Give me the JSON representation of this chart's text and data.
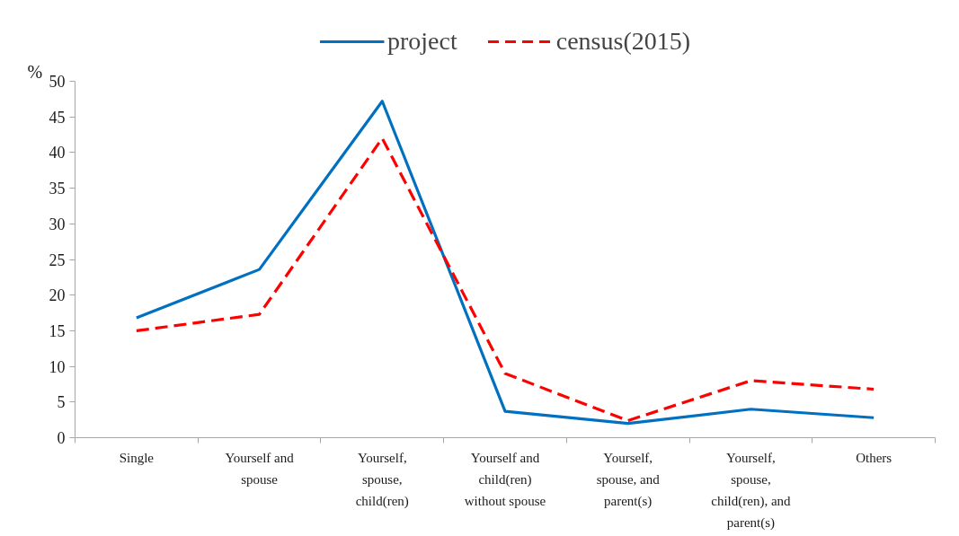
{
  "chart_data": {
    "type": "line",
    "categories": [
      "Single",
      "Yourself and spouse",
      "Yourself, spouse, child(ren)",
      "Yourself and child(ren) without spouse",
      "Yourself, spouse, and parent(s)",
      "Yourself, spouse, child(ren), and parent(s)",
      "Others"
    ],
    "series": [
      {
        "name": "project",
        "color": "#0070c0",
        "line_style": "solid",
        "values": [
          16.8,
          23.6,
          47.2,
          3.7,
          2.0,
          4.0,
          2.8
        ]
      },
      {
        "name": "census(2015)",
        "color": "#ff0000",
        "line_style": "dashed",
        "values": [
          15.0,
          17.3,
          42.0,
          9.0,
          2.4,
          8.0,
          6.8
        ]
      }
    ],
    "ylabel": "%",
    "ylim": [
      0,
      50
    ],
    "yticks": [
      0,
      5,
      10,
      15,
      20,
      25,
      30,
      35,
      40,
      45,
      50
    ],
    "grid": false,
    "legend": "top"
  }
}
